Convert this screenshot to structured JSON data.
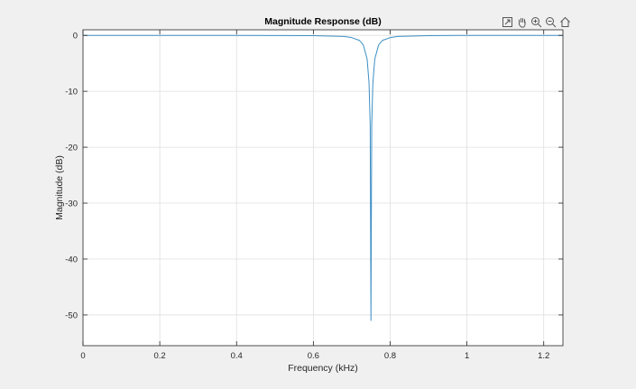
{
  "toolbar": {
    "icons": [
      "export-icon",
      "pan-hand-icon",
      "zoom-in-icon",
      "zoom-out-icon",
      "home-icon"
    ]
  },
  "colors": {
    "line": "#3d8fc4",
    "grid": "#dfdfdf",
    "axes_bg": "#ffffff",
    "figure_bg": "#f0f0f0"
  },
  "chart_data": {
    "type": "line",
    "title": "Magnitude Response (dB)",
    "xlabel": "Frequency (kHz)",
    "ylabel": "Magnitude (dB)",
    "xlim": [
      0,
      1.25
    ],
    "ylim": [
      -55.5,
      1
    ],
    "grid": true,
    "x_ticks": [
      0,
      0.2,
      0.4,
      0.6,
      0.8,
      1,
      1.2
    ],
    "x_tick_labels": [
      "0",
      "0.2",
      "0.4",
      "0.6",
      "0.8",
      "1",
      "1.2"
    ],
    "y_ticks": [
      0,
      -10,
      -20,
      -30,
      -40,
      -50
    ],
    "y_tick_labels": [
      "0",
      "-10",
      "-20",
      "-30",
      "-40",
      "-50"
    ],
    "series": [
      {
        "x": [
          0,
          0.2,
          0.4,
          0.6,
          0.68,
          0.7,
          0.72,
          0.73,
          0.74,
          0.745,
          0.748,
          0.75,
          0.752,
          0.755,
          0.76,
          0.77,
          0.78,
          0.8,
          0.82,
          0.9,
          1.0,
          1.1,
          1.25
        ],
        "y": [
          0,
          0,
          0,
          -0.05,
          -0.2,
          -0.4,
          -0.9,
          -1.7,
          -4.2,
          -8.5,
          -16,
          -51,
          -16,
          -8.5,
          -4.2,
          -1.7,
          -0.9,
          -0.4,
          -0.2,
          -0.05,
          0,
          0,
          0
        ]
      }
    ]
  }
}
